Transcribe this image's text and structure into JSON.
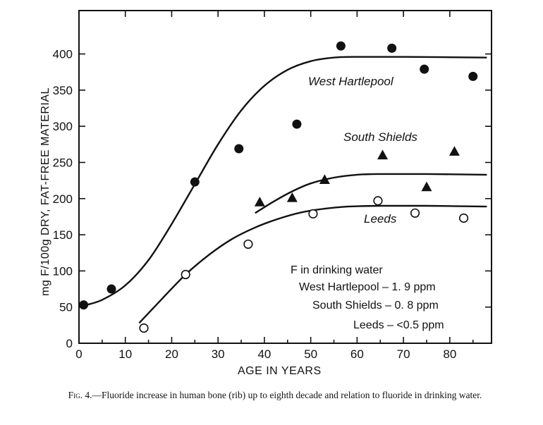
{
  "chart_data": {
    "type": "scatter",
    "xlabel": "AGE IN YEARS",
    "ylabel": "mg F/100g DRY, FAT-FREE MATERIAL",
    "xlim": [
      0,
      89
    ],
    "ylim": [
      0,
      460
    ],
    "xticks": [
      0,
      10,
      20,
      30,
      40,
      50,
      60,
      70,
      80
    ],
    "yticks": [
      0,
      50,
      100,
      150,
      200,
      250,
      300,
      350,
      400
    ],
    "grid": false,
    "series": [
      {
        "name": "West Hartlepool",
        "marker": "filled-circle",
        "points": [
          [
            1,
            53
          ],
          [
            7,
            75
          ],
          [
            25,
            223
          ],
          [
            34.5,
            269
          ],
          [
            47,
            303
          ],
          [
            56.5,
            411
          ],
          [
            67.5,
            408
          ],
          [
            74.5,
            379
          ],
          [
            85,
            369
          ]
        ],
        "fit_curve": [
          [
            1,
            52
          ],
          [
            5,
            60
          ],
          [
            10,
            80
          ],
          [
            15,
            115
          ],
          [
            20,
            165
          ],
          [
            25,
            220
          ],
          [
            30,
            275
          ],
          [
            35,
            322
          ],
          [
            40,
            356
          ],
          [
            45,
            378
          ],
          [
            50,
            390
          ],
          [
            55,
            395
          ],
          [
            60,
            396
          ],
          [
            70,
            396
          ],
          [
            88,
            395
          ]
        ]
      },
      {
        "name": "South Shields",
        "marker": "filled-triangle",
        "points": [
          [
            39,
            195
          ],
          [
            46,
            201
          ],
          [
            53,
            226
          ],
          [
            65.5,
            260
          ],
          [
            75,
            216
          ],
          [
            81,
            265
          ]
        ],
        "fit_curve": [
          [
            38,
            180
          ],
          [
            42,
            196
          ],
          [
            46,
            210
          ],
          [
            50,
            221
          ],
          [
            55,
            229
          ],
          [
            60,
            233
          ],
          [
            65,
            234
          ],
          [
            75,
            234
          ],
          [
            88,
            233
          ]
        ]
      },
      {
        "name": "Leeds",
        "marker": "open-circle",
        "points": [
          [
            14,
            21
          ],
          [
            23,
            95
          ],
          [
            36.5,
            137
          ],
          [
            50.5,
            179
          ],
          [
            64.5,
            197
          ],
          [
            72.5,
            180
          ],
          [
            83,
            173
          ]
        ],
        "fit_curve": [
          [
            13,
            28
          ],
          [
            18,
            62
          ],
          [
            23,
            95
          ],
          [
            28,
            122
          ],
          [
            33,
            144
          ],
          [
            38,
            160
          ],
          [
            43,
            172
          ],
          [
            48,
            181
          ],
          [
            53,
            186
          ],
          [
            58,
            189
          ],
          [
            65,
            190
          ],
          [
            75,
            190
          ],
          [
            88,
            189
          ]
        ]
      }
    ],
    "legend_note": {
      "title": "F in drinking water",
      "lines": [
        "West Hartlepool – 1. 9 ppm",
        "South Shields – 0. 8 ppm",
        "Leeds – <0.5 ppm"
      ]
    }
  },
  "caption": {
    "fig_label": "Fig. 4.",
    "text": "—Fluoride increase in human bone (rib) up to eighth decade and relation to fluoride in drinking water."
  }
}
